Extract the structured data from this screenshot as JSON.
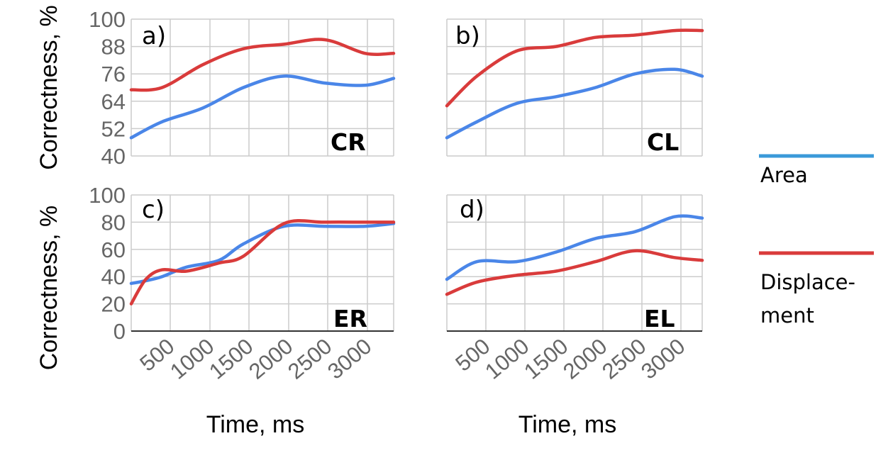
{
  "chart_data": [
    {
      "panel": "a)",
      "name": "CR",
      "type": "line",
      "x": [
        120,
        500,
        1000,
        1500,
        2000,
        2500,
        3000,
        3350
      ],
      "ylim": [
        40,
        100
      ],
      "yticks": [
        "40",
        "52",
        "64",
        "76",
        "88",
        "100"
      ],
      "ylabel": "Correctness, %",
      "series": [
        {
          "name": "Area",
          "values": [
            48,
            55,
            61,
            70,
            75,
            72,
            71,
            74
          ]
        },
        {
          "name": "Displacement",
          "values": [
            69,
            70,
            80,
            87,
            89,
            91,
            85,
            85
          ]
        }
      ]
    },
    {
      "panel": "b)",
      "name": "CL",
      "type": "line",
      "x": [
        120,
        500,
        1000,
        1500,
        2000,
        2500,
        3000,
        3350
      ],
      "ylim": [
        40,
        100
      ],
      "yticks": [
        "40",
        "52",
        "64",
        "76",
        "88",
        "100"
      ],
      "series": [
        {
          "name": "Area",
          "values": [
            48,
            55,
            63,
            66,
            70,
            76,
            78,
            75
          ]
        },
        {
          "name": "Displacement",
          "values": [
            62,
            75,
            86,
            88,
            92,
            93,
            95,
            95
          ]
        }
      ]
    },
    {
      "panel": "c)",
      "name": "ER",
      "type": "line",
      "x": [
        120,
        300,
        500,
        800,
        1200,
        1500,
        2000,
        2500,
        3000,
        3350
      ],
      "ylim": [
        0,
        100
      ],
      "yticks": [
        "0",
        "20",
        "40",
        "60",
        "80",
        "100"
      ],
      "xticks": [
        "500",
        "1000",
        "1500",
        "2000",
        "2500",
        "3000"
      ],
      "xlabel": "Time, ms",
      "ylabel": "Correctness, %",
      "series": [
        {
          "name": "Area",
          "values": [
            35,
            37,
            40,
            47,
            52,
            64,
            77,
            77,
            77,
            79
          ]
        },
        {
          "name": "Displacement",
          "values": [
            20,
            38,
            45,
            44,
            50,
            55,
            79,
            80,
            80,
            80
          ]
        }
      ]
    },
    {
      "panel": "d)",
      "name": "EL",
      "type": "line",
      "x": [
        120,
        500,
        1000,
        1500,
        2000,
        2500,
        3000,
        3350
      ],
      "ylim": [
        0,
        100
      ],
      "yticks": [
        "0",
        "20",
        "40",
        "60",
        "80",
        "100"
      ],
      "xticks": [
        "500",
        "1000",
        "1500",
        "2000",
        "2500",
        "3000"
      ],
      "xlabel": "Time, ms",
      "series": [
        {
          "name": "Area",
          "values": [
            38,
            51,
            51,
            58,
            68,
            73,
            84,
            83
          ]
        },
        {
          "name": "Displacement",
          "values": [
            27,
            36,
            41,
            44,
            51,
            59,
            54,
            52
          ]
        }
      ]
    }
  ],
  "colors": {
    "Area": "#4a86e8",
    "Displacement": "#d93b3b",
    "grid": "#cccccc",
    "baseline": "#333333",
    "tick_text": "#666666"
  },
  "legend": {
    "area_label": "Area",
    "displacement_label_line1": "Displace-",
    "displacement_label_line2": "ment",
    "area_color": "#3a9ad9",
    "displacement_color": "#d93b3b"
  }
}
